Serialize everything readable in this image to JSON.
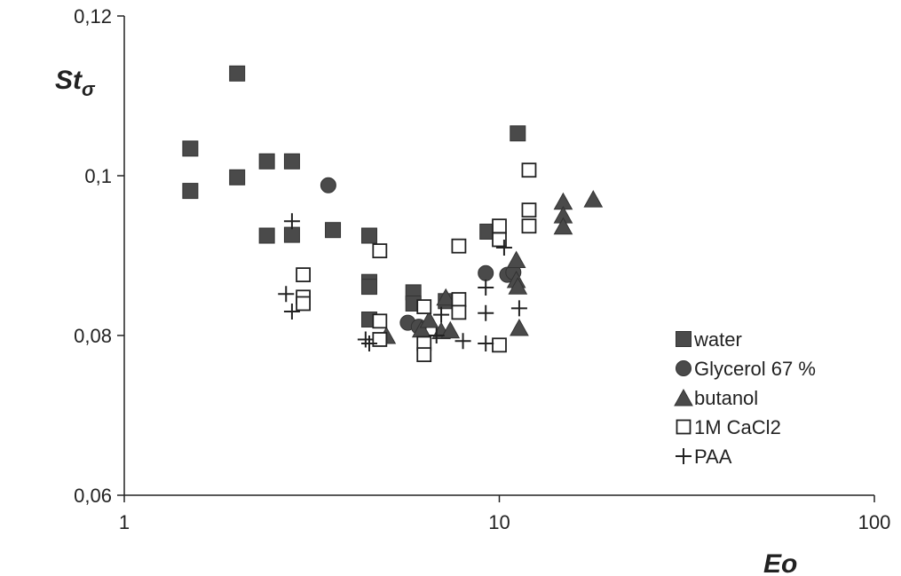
{
  "chart_data": {
    "type": "scatter",
    "xlabel": "Eo",
    "ylabel": "Stσ",
    "ylabel_main": "St",
    "ylabel_sub": "σ",
    "x_scale": "log",
    "xlim": [
      1,
      100
    ],
    "ylim": [
      0.06,
      0.12
    ],
    "x_ticks": [
      1,
      10,
      100
    ],
    "x_tick_labels": [
      "1",
      "10",
      "100"
    ],
    "y_ticks": [
      0.06,
      0.08,
      0.1,
      0.12
    ],
    "y_tick_labels": [
      "0,06",
      "0,08",
      "0,1",
      "0,12"
    ],
    "grid": false,
    "legend_position": "right-bottom",
    "series": [
      {
        "name": "water",
        "marker": "filled-square",
        "points": [
          [
            1.5,
            0.1034
          ],
          [
            1.5,
            0.0981
          ],
          [
            2.0,
            0.1128
          ],
          [
            2.0,
            0.0998
          ],
          [
            2.4,
            0.1018
          ],
          [
            2.4,
            0.0925
          ],
          [
            2.8,
            0.1018
          ],
          [
            2.8,
            0.0926
          ],
          [
            3.6,
            0.0932
          ],
          [
            4.5,
            0.0925
          ],
          [
            4.5,
            0.0867
          ],
          [
            4.5,
            0.0861
          ],
          [
            4.5,
            0.082
          ],
          [
            5.9,
            0.0854
          ],
          [
            5.9,
            0.084
          ],
          [
            7.2,
            0.0843
          ],
          [
            9.3,
            0.093
          ],
          [
            11.2,
            0.1053
          ]
        ]
      },
      {
        "name": "Glycerol 67 %",
        "marker": "filled-circle",
        "points": [
          [
            3.5,
            0.0988
          ],
          [
            5.7,
            0.0816
          ],
          [
            6.1,
            0.0811
          ],
          [
            9.2,
            0.0878
          ],
          [
            10.5,
            0.0876
          ],
          [
            10.9,
            0.0879
          ]
        ]
      },
      {
        "name": "butanol",
        "marker": "filled-triangle",
        "points": [
          [
            5.0,
            0.08
          ],
          [
            6.2,
            0.0808
          ],
          [
            6.5,
            0.082
          ],
          [
            7.0,
            0.0806
          ],
          [
            7.2,
            0.0848
          ],
          [
            7.4,
            0.0807
          ],
          [
            11.1,
            0.0895
          ],
          [
            11.1,
            0.087
          ],
          [
            11.2,
            0.0862
          ],
          [
            11.3,
            0.081
          ],
          [
            14.8,
            0.0968
          ],
          [
            14.8,
            0.0951
          ],
          [
            14.8,
            0.0937
          ],
          [
            17.8,
            0.0971
          ]
        ]
      },
      {
        "name": "1M CaCl2",
        "marker": "open-square",
        "points": [
          [
            3.0,
            0.0876
          ],
          [
            3.0,
            0.0848
          ],
          [
            3.0,
            0.084
          ],
          [
            4.8,
            0.0906
          ],
          [
            4.8,
            0.0818
          ],
          [
            4.8,
            0.0795
          ],
          [
            6.3,
            0.0836
          ],
          [
            6.3,
            0.079
          ],
          [
            6.3,
            0.0776
          ],
          [
            7.8,
            0.0912
          ],
          [
            7.8,
            0.0845
          ],
          [
            7.8,
            0.0829
          ],
          [
            10.0,
            0.0937
          ],
          [
            10.0,
            0.092
          ],
          [
            10.0,
            0.0788
          ],
          [
            12.0,
            0.1007
          ],
          [
            12.0,
            0.0957
          ],
          [
            12.0,
            0.0937
          ]
        ]
      },
      {
        "name": "PAA",
        "marker": "plus",
        "points": [
          [
            2.8,
            0.0943
          ],
          [
            2.7,
            0.0852
          ],
          [
            2.8,
            0.083
          ],
          [
            4.4,
            0.0795
          ],
          [
            4.5,
            0.079
          ],
          [
            6.8,
            0.08
          ],
          [
            7.0,
            0.0826
          ],
          [
            8.0,
            0.0793
          ],
          [
            9.2,
            0.086
          ],
          [
            9.2,
            0.0828
          ],
          [
            9.2,
            0.079
          ],
          [
            10.3,
            0.091
          ],
          [
            11.3,
            0.0834
          ]
        ]
      }
    ]
  },
  "colors": {
    "filled": "#4a4a4a",
    "axis": "#222222",
    "open_fill": "#ffffff"
  }
}
